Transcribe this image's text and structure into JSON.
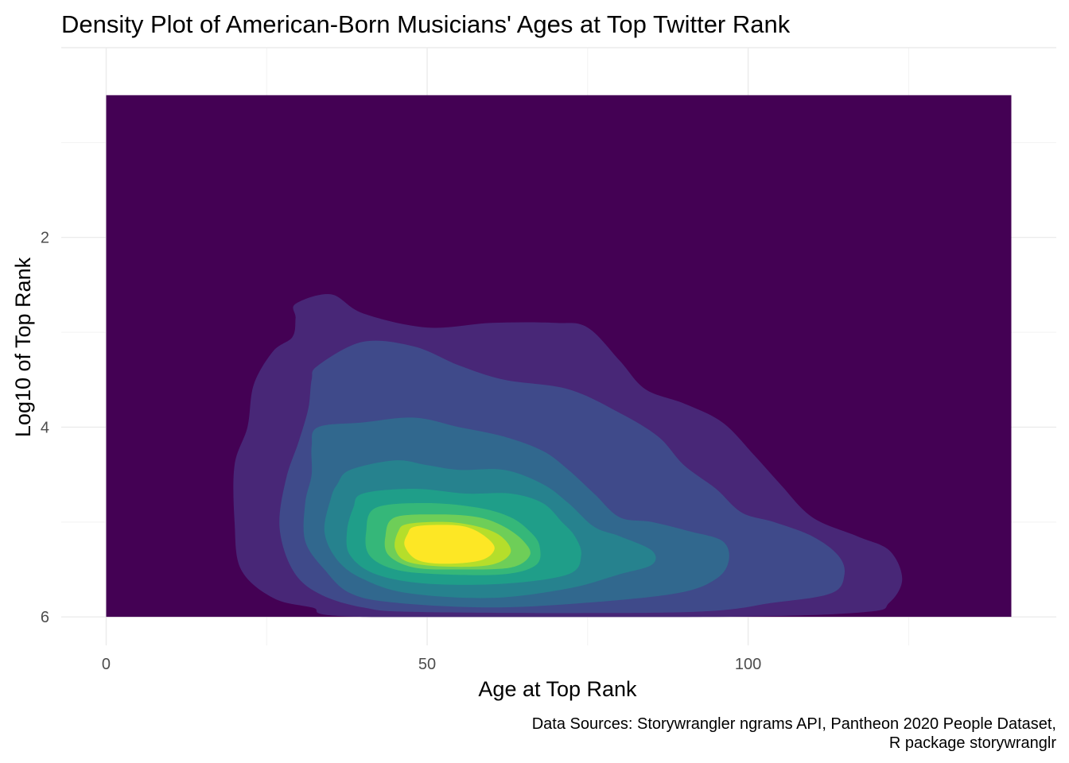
{
  "chart_data": {
    "type": "filled-density-contour",
    "title": "Density Plot of American-Born Musicians' Ages at Top Twitter Rank",
    "xlabel": "Age at Top Rank",
    "ylabel": "Log10 of Top Rank",
    "caption_lines": [
      "Data Sources: Storywrangler ngrams API, Pantheon 2020 People Dataset,",
      "R package storywranglr"
    ],
    "xlim": [
      -7,
      148
    ],
    "ylim": [
      6.3,
      0.0
    ],
    "y_reversed": true,
    "x_ticks": [
      0,
      50,
      100
    ],
    "x_tick_labels": [
      "0",
      "50",
      "100"
    ],
    "y_ticks": [
      2,
      4,
      6
    ],
    "y_tick_labels": [
      "2",
      "4",
      "6"
    ],
    "grid": true,
    "legend": "none",
    "density_extent": {
      "x": [
        0,
        141
      ],
      "y": [
        0.5,
        6.0
      ]
    },
    "palette": "viridis",
    "background_fill": "#440154",
    "levels": [
      {
        "level": 1,
        "fill": "#482777",
        "center": [
          72,
          4.5
        ],
        "rx": 43,
        "ry": 2.3,
        "points": [
          [
            29.5,
            2.7
          ],
          [
            35,
            2.6
          ],
          [
            40,
            2.8
          ],
          [
            50,
            2.95
          ],
          [
            60,
            2.9
          ],
          [
            70,
            2.9
          ],
          [
            75,
            2.95
          ],
          [
            80,
            3.3
          ],
          [
            84,
            3.6
          ],
          [
            90,
            3.75
          ],
          [
            96,
            3.95
          ],
          [
            101,
            4.3
          ],
          [
            105,
            4.6
          ],
          [
            110,
            4.95
          ],
          [
            117,
            5.15
          ],
          [
            122,
            5.3
          ],
          [
            124,
            5.6
          ],
          [
            122,
            5.85
          ],
          [
            118,
            5.95
          ],
          [
            95,
            6.0
          ],
          [
            40,
            6.0
          ],
          [
            32,
            5.9
          ],
          [
            26,
            5.8
          ],
          [
            21,
            5.5
          ],
          [
            20,
            5.0
          ],
          [
            20,
            4.4
          ],
          [
            22,
            4.0
          ],
          [
            23,
            3.55
          ],
          [
            26,
            3.2
          ],
          [
            29,
            3.05
          ],
          [
            29.5,
            2.85
          ]
        ]
      },
      {
        "level": 2,
        "fill": "#3f4a8a",
        "center": [
          68,
          4.7
        ],
        "rx": 37,
        "ry": 1.9,
        "points": [
          [
            33,
            3.35
          ],
          [
            40,
            3.1
          ],
          [
            48,
            3.15
          ],
          [
            55,
            3.35
          ],
          [
            62,
            3.5
          ],
          [
            72,
            3.6
          ],
          [
            80,
            3.85
          ],
          [
            86,
            4.1
          ],
          [
            90,
            4.4
          ],
          [
            95,
            4.65
          ],
          [
            99,
            4.9
          ],
          [
            104,
            5.0
          ],
          [
            110,
            5.15
          ],
          [
            114,
            5.35
          ],
          [
            115,
            5.55
          ],
          [
            113,
            5.75
          ],
          [
            104,
            5.85
          ],
          [
            90,
            5.95
          ],
          [
            50,
            5.95
          ],
          [
            40,
            5.9
          ],
          [
            33,
            5.75
          ],
          [
            29,
            5.5
          ],
          [
            27,
            5.05
          ],
          [
            28,
            4.55
          ],
          [
            30,
            4.15
          ],
          [
            31.5,
            3.8
          ],
          [
            32,
            3.5
          ]
        ]
      },
      {
        "level": 3,
        "fill": "#31688e",
        "center": [
          63,
          4.9
        ],
        "rx": 30,
        "ry": 1.5,
        "points": [
          [
            33,
            4.0
          ],
          [
            40,
            3.95
          ],
          [
            48,
            3.9
          ],
          [
            55,
            4.0
          ],
          [
            62,
            4.1
          ],
          [
            68,
            4.25
          ],
          [
            72,
            4.45
          ],
          [
            76,
            4.7
          ],
          [
            80,
            4.95
          ],
          [
            85,
            5.0
          ],
          [
            91,
            5.1
          ],
          [
            96,
            5.2
          ],
          [
            97,
            5.4
          ],
          [
            95,
            5.6
          ],
          [
            89,
            5.75
          ],
          [
            75,
            5.85
          ],
          [
            60,
            5.9
          ],
          [
            45,
            5.85
          ],
          [
            38,
            5.75
          ],
          [
            34,
            5.5
          ],
          [
            31,
            5.2
          ],
          [
            31,
            4.8
          ],
          [
            32,
            4.5
          ],
          [
            32,
            4.2
          ]
        ]
      },
      {
        "level": 4,
        "fill": "#26828e",
        "center": [
          58,
          5.05
        ],
        "rx": 24,
        "ry": 1.15,
        "points": [
          [
            38,
            4.45
          ],
          [
            45,
            4.35
          ],
          [
            50,
            4.4
          ],
          [
            55,
            4.45
          ],
          [
            62,
            4.45
          ],
          [
            68,
            4.6
          ],
          [
            72,
            4.8
          ],
          [
            76,
            5.05
          ],
          [
            80,
            5.15
          ],
          [
            85,
            5.3
          ],
          [
            85,
            5.45
          ],
          [
            80,
            5.55
          ],
          [
            72,
            5.7
          ],
          [
            60,
            5.8
          ],
          [
            47,
            5.75
          ],
          [
            40,
            5.6
          ],
          [
            36,
            5.4
          ],
          [
            34,
            5.1
          ],
          [
            35,
            4.75
          ],
          [
            36,
            4.6
          ]
        ]
      },
      {
        "level": 5,
        "fill": "#1f9e89",
        "center": [
          55,
          5.2
        ],
        "rx": 19,
        "ry": 0.85,
        "points": [
          [
            40,
            4.7
          ],
          [
            48,
            4.65
          ],
          [
            56,
            4.7
          ],
          [
            63,
            4.7
          ],
          [
            68,
            4.8
          ],
          [
            71,
            5.0
          ],
          [
            73,
            5.15
          ],
          [
            74,
            5.35
          ],
          [
            72,
            5.55
          ],
          [
            62,
            5.65
          ],
          [
            50,
            5.65
          ],
          [
            42,
            5.55
          ],
          [
            38,
            5.35
          ],
          [
            37.5,
            5.1
          ],
          [
            38.5,
            4.85
          ]
        ]
      },
      {
        "level": 6,
        "fill": "#35b779",
        "center": [
          55,
          5.25
        ],
        "rx": 15,
        "ry": 0.65,
        "points": [
          [
            42,
            4.85
          ],
          [
            50,
            4.8
          ],
          [
            58,
            4.85
          ],
          [
            63,
            4.95
          ],
          [
            66,
            5.1
          ],
          [
            67.5,
            5.25
          ],
          [
            67,
            5.45
          ],
          [
            62,
            5.55
          ],
          [
            52,
            5.55
          ],
          [
            45,
            5.5
          ],
          [
            41,
            5.35
          ],
          [
            40.5,
            5.1
          ]
        ]
      },
      {
        "level": 7,
        "fill": "#6ece58",
        "center": [
          55,
          5.3
        ],
        "rx": 11.5,
        "ry": 0.48,
        "points": [
          [
            45,
            4.95
          ],
          [
            52,
            4.92
          ],
          [
            58,
            4.95
          ],
          [
            62,
            5.05
          ],
          [
            65,
            5.2
          ],
          [
            66,
            5.35
          ],
          [
            63,
            5.48
          ],
          [
            55,
            5.5
          ],
          [
            48,
            5.48
          ],
          [
            44,
            5.35
          ],
          [
            43.5,
            5.15
          ]
        ]
      },
      {
        "level": 8,
        "fill": "#b5de2b",
        "center": [
          54,
          5.3
        ],
        "rx": 9,
        "ry": 0.38,
        "points": [
          [
            47,
            5.02
          ],
          [
            53,
            5.0
          ],
          [
            58,
            5.05
          ],
          [
            61.5,
            5.15
          ],
          [
            63,
            5.32
          ],
          [
            60,
            5.45
          ],
          [
            53,
            5.47
          ],
          [
            47,
            5.42
          ],
          [
            45,
            5.28
          ],
          [
            45.5,
            5.1
          ]
        ]
      },
      {
        "level": 9,
        "fill": "#fde725",
        "center": [
          53,
          5.27
        ],
        "rx": 6.5,
        "ry": 0.27,
        "points": [
          [
            48,
            5.05
          ],
          [
            52,
            5.03
          ],
          [
            56,
            5.05
          ],
          [
            59,
            5.15
          ],
          [
            60.5,
            5.28
          ],
          [
            58.5,
            5.4
          ],
          [
            53,
            5.44
          ],
          [
            48.5,
            5.4
          ],
          [
            46.5,
            5.25
          ],
          [
            47,
            5.12
          ]
        ]
      }
    ]
  }
}
